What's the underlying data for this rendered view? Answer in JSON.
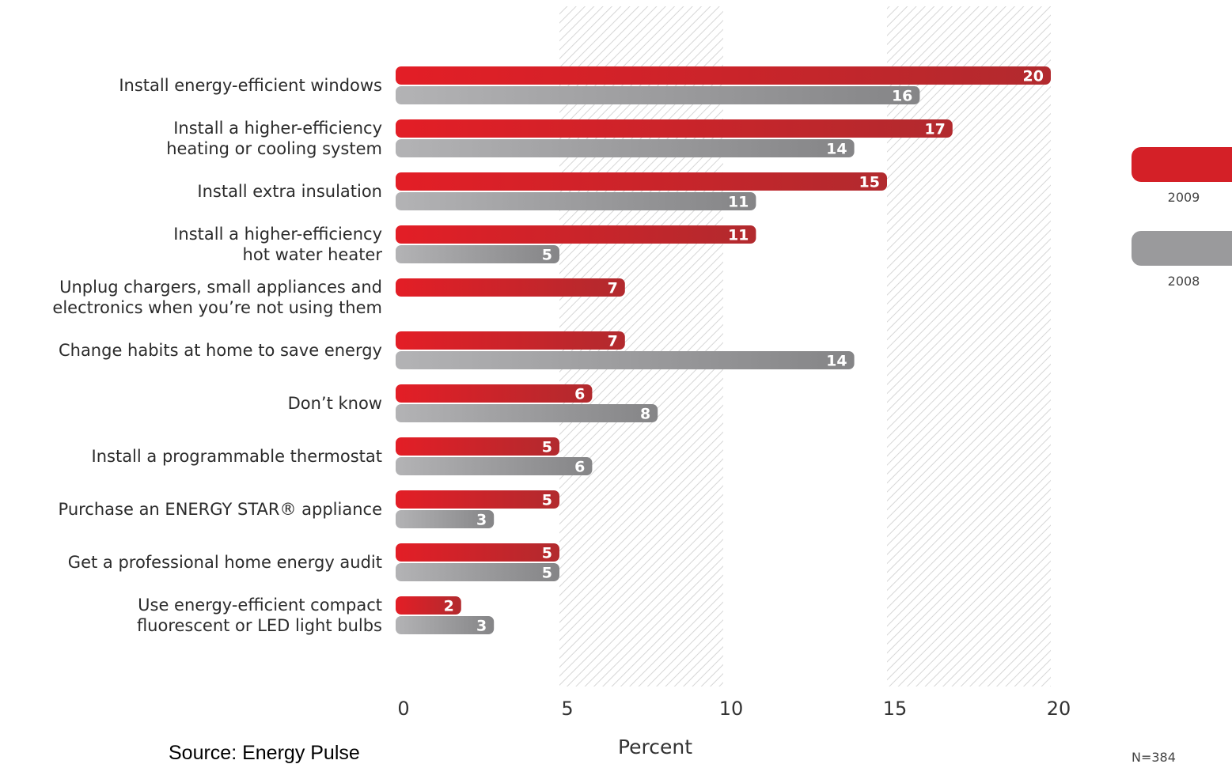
{
  "chart_data": {
    "type": "bar",
    "orientation": "horizontal",
    "categories": [
      [
        "Install energy-efficient windows"
      ],
      [
        "Install a higher-efficiency",
        "heating or cooling system"
      ],
      [
        "Install extra insulation"
      ],
      [
        "Install a higher-efficiency",
        "hot water heater"
      ],
      [
        "Unplug chargers, small appliances and",
        "electronics when you’re not using them"
      ],
      [
        "Change habits at home to save energy"
      ],
      [
        "Don’t know"
      ],
      [
        "Install a programmable thermostat"
      ],
      [
        "Purchase an ENERGY STAR® appliance"
      ],
      [
        "Get a professional home energy audit"
      ],
      [
        "Use energy-efficient compact",
        "fluorescent or LED light bulbs"
      ]
    ],
    "series": [
      {
        "name": "2009",
        "color": "#d42027",
        "values": [
          20,
          17,
          15,
          11,
          7,
          7,
          6,
          5,
          5,
          5,
          2
        ]
      },
      {
        "name": "2008",
        "color": "#9a9a9c",
        "values": [
          16,
          14,
          11,
          5,
          null,
          14,
          8,
          6,
          3,
          5,
          3
        ]
      }
    ],
    "xlim": [
      0,
      20
    ],
    "xticks": [
      "0",
      "5",
      "10",
      "15",
      "20"
    ],
    "xlabel": "Percent",
    "hatched_bands": [
      [
        5,
        10
      ],
      [
        15,
        20
      ]
    ],
    "legend_position": "right",
    "source": "Source: Energy Pulse",
    "note": "N=384"
  }
}
